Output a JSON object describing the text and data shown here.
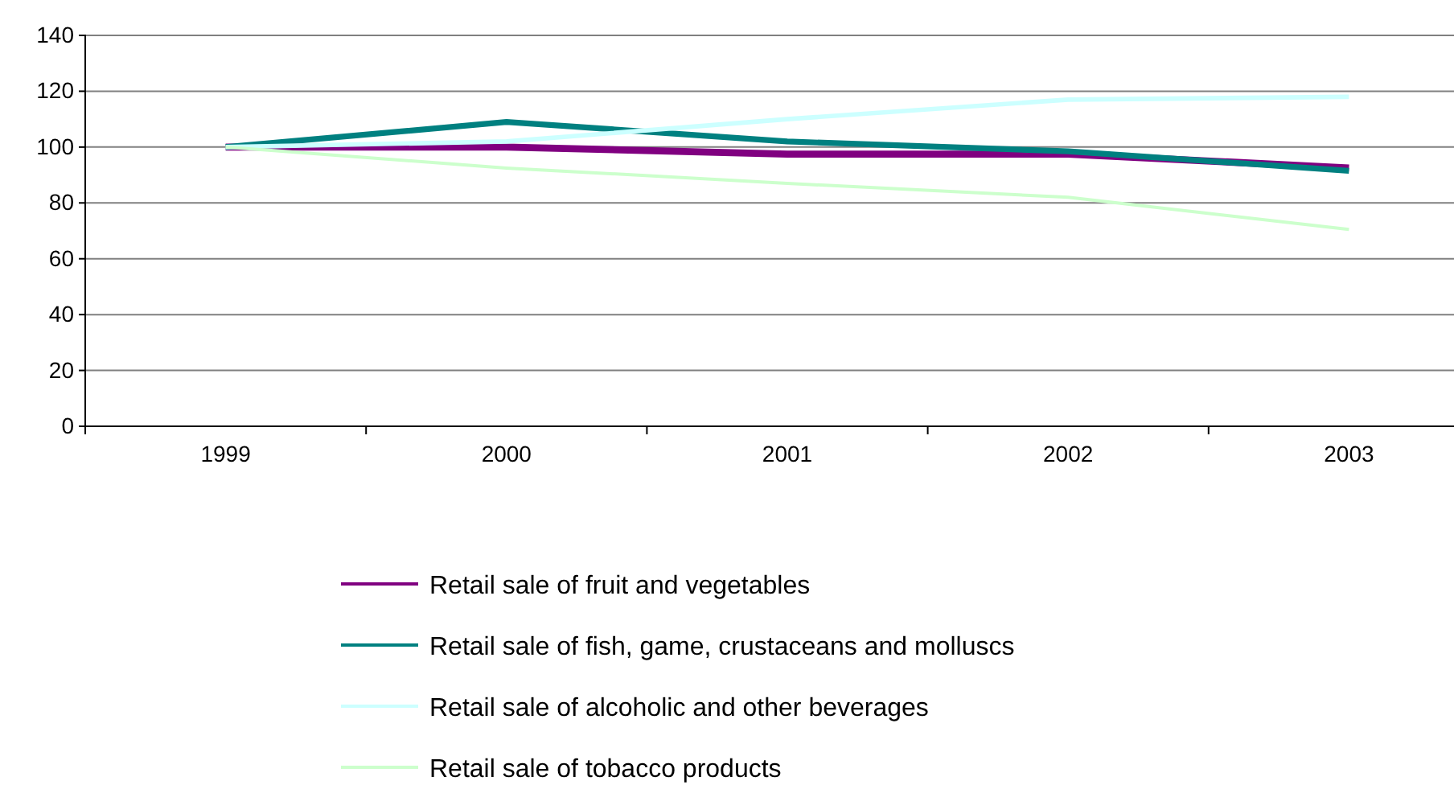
{
  "chart_data": {
    "type": "line",
    "categories": [
      "1999",
      "2000",
      "2001",
      "2002",
      "2003"
    ],
    "series": [
      {
        "name": "Retail sale of fruit and vegetables",
        "color": "#800080",
        "values": [
          100,
          100,
          97.5,
          97.5,
          92.5
        ]
      },
      {
        "name": "Retail sale of fish, game, crustaceans and molluscs",
        "color": "#008080",
        "values": [
          100,
          109,
          102,
          98.5,
          91.5
        ]
      },
      {
        "name": "Retail sale of alcoholic and other beverages",
        "color": "#ccffff",
        "values": [
          100,
          102,
          110,
          117,
          118
        ]
      },
      {
        "name": "Retail sale of tobacco products",
        "color": "#ccffcc",
        "values": [
          100,
          92.5,
          87,
          82,
          70.5
        ]
      }
    ],
    "ylim": [
      0,
      140
    ],
    "yticks": [
      0,
      20,
      40,
      60,
      80,
      100,
      120,
      140
    ],
    "grid": "y",
    "legend": "bottom",
    "marker": "none",
    "line_style": "solid"
  }
}
